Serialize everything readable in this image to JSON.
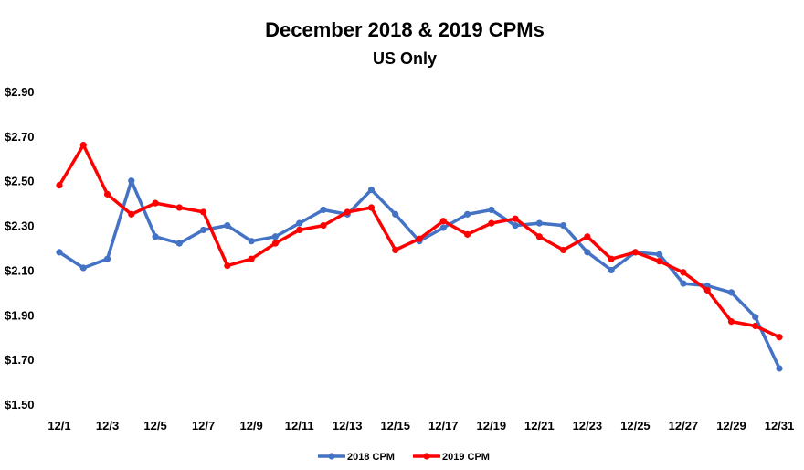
{
  "chart_data": {
    "type": "line",
    "title": "December 2018 & 2019 CPMs",
    "subtitle": "US Only",
    "xlabel": "",
    "ylabel": "",
    "ylim": [
      1.5,
      2.9
    ],
    "yticks": [
      "$1.50",
      "$1.70",
      "$1.90",
      "$2.10",
      "$2.30",
      "$2.50",
      "$2.70",
      "$2.90"
    ],
    "ytick_values": [
      1.5,
      1.7,
      1.9,
      2.1,
      2.3,
      2.5,
      2.7,
      2.9
    ],
    "categories": [
      "12/1",
      "12/2",
      "12/3",
      "12/4",
      "12/5",
      "12/6",
      "12/7",
      "12/8",
      "12/9",
      "12/10",
      "12/11",
      "12/12",
      "12/13",
      "12/14",
      "12/15",
      "12/16",
      "12/17",
      "12/18",
      "12/19",
      "12/20",
      "12/21",
      "12/22",
      "12/23",
      "12/24",
      "12/25",
      "12/26",
      "12/27",
      "12/28",
      "12/29",
      "12/30",
      "12/31"
    ],
    "xtick_labels": [
      "12/1",
      "12/3",
      "12/5",
      "12/7",
      "12/9",
      "12/11",
      "12/13",
      "12/15",
      "12/17",
      "12/19",
      "12/21",
      "12/23",
      "12/25",
      "12/27",
      "12/29",
      "12/31"
    ],
    "grid": false,
    "legend_position": "bottom",
    "series": [
      {
        "name": "2018 CPM",
        "color": "#4472C4",
        "values": [
          2.18,
          2.11,
          2.15,
          2.5,
          2.25,
          2.22,
          2.28,
          2.3,
          2.23,
          2.25,
          2.31,
          2.37,
          2.35,
          2.46,
          2.35,
          2.23,
          2.29,
          2.35,
          2.37,
          2.3,
          2.31,
          2.3,
          2.18,
          2.1,
          2.18,
          2.17,
          2.04,
          2.03,
          2.0,
          1.89,
          1.66
        ]
      },
      {
        "name": "2019 CPM",
        "color": "#FF0000",
        "values": [
          2.48,
          2.66,
          2.44,
          2.35,
          2.4,
          2.38,
          2.36,
          2.12,
          2.15,
          2.22,
          2.28,
          2.3,
          2.36,
          2.38,
          2.19,
          2.24,
          2.32,
          2.26,
          2.31,
          2.33,
          2.25,
          2.19,
          2.25,
          2.15,
          2.18,
          2.14,
          2.09,
          2.01,
          1.87,
          1.85,
          1.8
        ]
      }
    ]
  }
}
